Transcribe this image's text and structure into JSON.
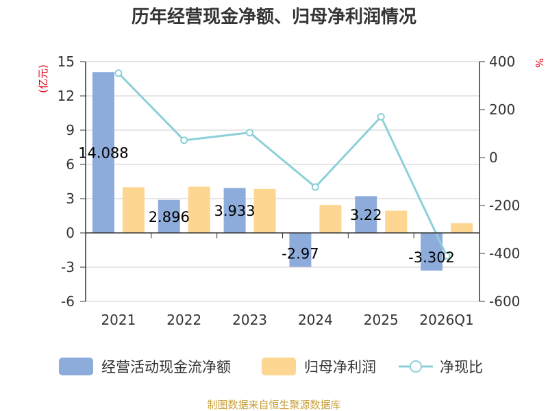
{
  "chart_data": {
    "type": "bar",
    "title": "历年经营现金净额、归母净利润情况",
    "categories": [
      "2021",
      "2022",
      "2023",
      "2024",
      "2025",
      "2026Q1"
    ],
    "series": [
      {
        "name": "经营活动现金流净额",
        "type": "bar",
        "axis": "left",
        "color": "#8eacdb",
        "values": [
          14.088,
          2.896,
          3.933,
          -2.97,
          3.22,
          -3.302
        ],
        "labels": [
          "14.088",
          "2.896",
          "3.933",
          "-2.97",
          "3.22",
          "-3.302"
        ]
      },
      {
        "name": "归母净利润",
        "type": "bar",
        "axis": "left",
        "color": "#fdd692",
        "values": [
          4.0,
          4.05,
          3.85,
          2.45,
          1.95,
          0.85
        ]
      },
      {
        "name": "净现比",
        "type": "line",
        "axis": "right",
        "color": "#8dd0d8",
        "values": [
          352,
          72,
          104,
          -123,
          170,
          -410
        ]
      }
    ],
    "y_left": {
      "label": "(亿元)",
      "min": -6,
      "max": 15,
      "ticks": [
        15,
        12,
        9,
        6,
        3,
        0,
        -3,
        -6
      ]
    },
    "y_right": {
      "label": "%",
      "min": -600,
      "max": 400,
      "ticks": [
        400,
        200,
        0,
        -200,
        -400,
        -600
      ]
    },
    "grid": true,
    "legend_position": "bottom"
  },
  "source": "制图数据来自恒生聚源数据库"
}
